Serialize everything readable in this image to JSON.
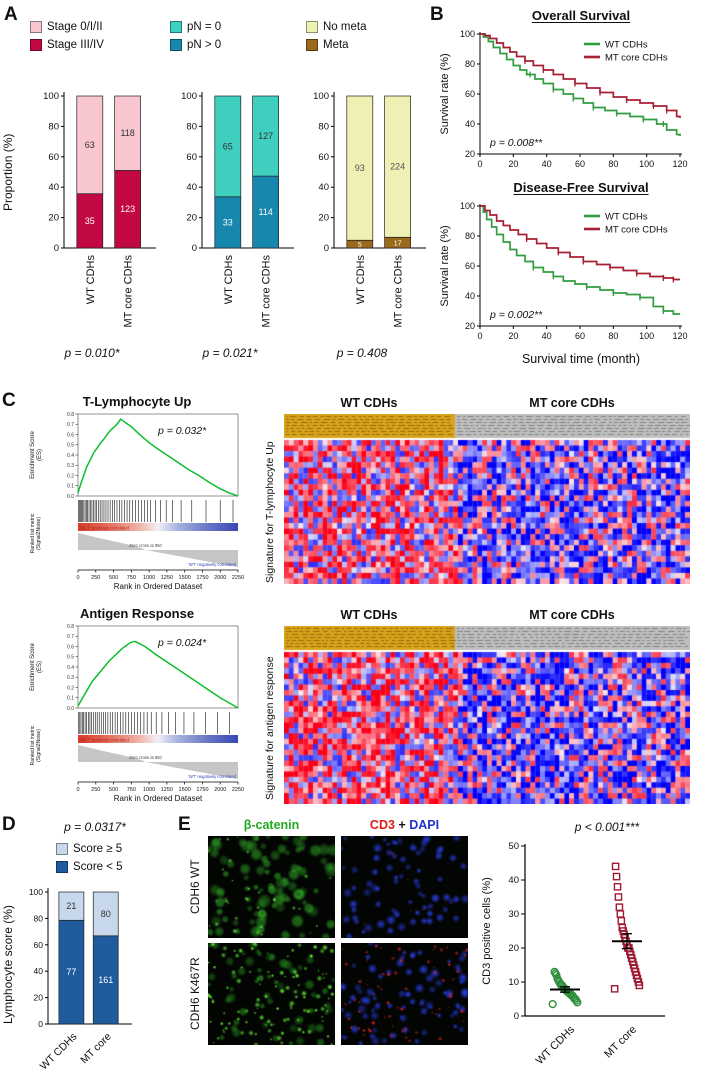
{
  "figure": {
    "panel_labels": {
      "A": "A",
      "B": "B",
      "C": "C",
      "D": "D",
      "E": "E"
    }
  },
  "chart_data": [
    {
      "id": "A1",
      "type": "bar",
      "stacked": true,
      "ylabel": "Proportion (%)",
      "ylim": [
        0,
        100
      ],
      "yticks": [
        0,
        20,
        40,
        60,
        80,
        100
      ],
      "categories": [
        "WT CDHs",
        "MT core CDHs"
      ],
      "series": [
        {
          "name": "Stage III/IV",
          "color": "#C20843",
          "label_color": "#FFFFFF",
          "values": [
            35,
            123
          ]
        },
        {
          "name": "Stage 0/I/II",
          "color": "#F7C6CF",
          "label_color": "#333333",
          "values": [
            63,
            118
          ]
        }
      ],
      "legend": [
        {
          "label": "Stage 0/I/II",
          "color": "#F7C6CF"
        },
        {
          "label": "Stage III/IV",
          "color": "#C20843"
        }
      ],
      "p_value": "p = 0.010*"
    },
    {
      "id": "A2",
      "type": "bar",
      "stacked": true,
      "ylabel": "Proportion (%)",
      "ylim": [
        0,
        100
      ],
      "yticks": [
        0,
        20,
        40,
        60,
        80,
        100
      ],
      "categories": [
        "WT CDHs",
        "MT core CDHs"
      ],
      "series": [
        {
          "name": "pN > 0",
          "color": "#1787AE",
          "label_color": "#FFFFFF",
          "values": [
            33,
            114
          ]
        },
        {
          "name": "pN = 0",
          "color": "#3FCFBF",
          "label_color": "#333333",
          "values": [
            65,
            127
          ]
        }
      ],
      "legend": [
        {
          "label": "pN = 0",
          "color": "#3FCFBF"
        },
        {
          "label": "pN > 0",
          "color": "#1787AE"
        }
      ],
      "p_value": "p = 0.021*"
    },
    {
      "id": "A3",
      "type": "bar",
      "stacked": true,
      "ylabel": "Proportion (%)",
      "ylim": [
        0,
        100
      ],
      "yticks": [
        0,
        20,
        40,
        60,
        80,
        100
      ],
      "categories": [
        "WT CDHs",
        "MT core CDHs"
      ],
      "series": [
        {
          "name": "Meta",
          "color": "#9A691B",
          "label_color": "#FFFFFF",
          "values": [
            5,
            17
          ]
        },
        {
          "name": "No meta",
          "color": "#EEF0B4",
          "label_color": "#555555",
          "values": [
            93,
            224
          ]
        }
      ],
      "legend": [
        {
          "label": "No meta",
          "color": "#EEF0B4"
        },
        {
          "label": "Meta",
          "color": "#9A691B"
        }
      ],
      "p_value": "p = 0.408"
    },
    {
      "id": "B1",
      "type": "line",
      "title": "Overall Survival",
      "ylabel": "Survival rate (%)",
      "xlabel": "",
      "xlim": [
        0,
        120
      ],
      "ylim": [
        20,
        100
      ],
      "xticks": [
        0,
        20,
        40,
        60,
        80,
        100,
        120
      ],
      "yticks": [
        20,
        40,
        60,
        80,
        100
      ],
      "p_value": "p = 0.008**",
      "series": [
        {
          "name": "WT CDHs",
          "color": "#2F9E3E",
          "x": [
            0,
            2,
            5,
            8,
            12,
            16,
            20,
            24,
            28,
            33,
            38,
            44,
            50,
            56,
            62,
            68,
            75,
            82,
            90,
            98,
            106,
            112,
            118,
            120
          ],
          "y": [
            100,
            98,
            95,
            91,
            87,
            83,
            79,
            76,
            73,
            70,
            67,
            63,
            60,
            57,
            54,
            51,
            49,
            47,
            45,
            43,
            40,
            36,
            33,
            32
          ],
          "censors": [
            30,
            44,
            56,
            68,
            82,
            98,
            110
          ]
        },
        {
          "name": "MT core CDHs",
          "color": "#A81F33",
          "x": [
            0,
            3,
            6,
            10,
            14,
            18,
            22,
            27,
            32,
            38,
            44,
            50,
            57,
            64,
            72,
            80,
            88,
            96,
            104,
            112,
            118,
            120
          ],
          "y": [
            100,
            99,
            97,
            94,
            91,
            88,
            85,
            82,
            79,
            76,
            73,
            70,
            67,
            64,
            61,
            58,
            56,
            54,
            52,
            49,
            45,
            44
          ],
          "censors": [
            27,
            38,
            57,
            72,
            88,
            104,
            112
          ]
        }
      ]
    },
    {
      "id": "B2",
      "type": "line",
      "title": "Disease-Free Survival",
      "ylabel": "Survival rate (%)",
      "xlabel": "Survival time (month)",
      "xlim": [
        0,
        120
      ],
      "ylim": [
        20,
        100
      ],
      "xticks": [
        0,
        20,
        40,
        60,
        80,
        100,
        120
      ],
      "yticks": [
        20,
        40,
        60,
        80,
        100
      ],
      "p_value": "p = 0.002**",
      "series": [
        {
          "name": "WT CDHs",
          "color": "#2F9E3E",
          "x": [
            0,
            2,
            4,
            7,
            10,
            14,
            18,
            22,
            27,
            32,
            38,
            44,
            50,
            57,
            64,
            72,
            80,
            88,
            96,
            104,
            110,
            116,
            120
          ],
          "y": [
            100,
            96,
            91,
            86,
            81,
            76,
            71,
            67,
            63,
            59,
            56,
            53,
            50,
            48,
            46,
            44,
            42,
            41,
            39,
            33,
            30,
            28,
            28
          ],
          "censors": [
            32,
            44,
            64,
            80,
            96,
            110
          ]
        },
        {
          "name": "MT core CDHs",
          "color": "#A81F33",
          "x": [
            0,
            3,
            6,
            10,
            14,
            18,
            23,
            28,
            34,
            40,
            47,
            54,
            62,
            70,
            78,
            86,
            94,
            102,
            110,
            116,
            120
          ],
          "y": [
            100,
            97,
            94,
            90,
            87,
            84,
            81,
            78,
            75,
            72,
            69,
            66,
            63,
            61,
            59,
            57,
            55,
            53,
            52,
            51,
            51
          ],
          "censors": [
            28,
            47,
            62,
            78,
            94,
            110,
            116
          ]
        }
      ]
    },
    {
      "id": "C1",
      "type": "gsea",
      "title": "T-Lymphocyte Up",
      "p_value": "p = 0.032*",
      "ylabel_line1": "Enrichment Score",
      "ylabel_line2": "(ES)",
      "ylabel2_line1": "Ranked list metric",
      "ylabel2_line2": "(Signal2Noise)",
      "xlabel": "Rank in Ordered Dataset",
      "xmax": 2250,
      "xticks": [
        0,
        250,
        500,
        750,
        1000,
        1250,
        1500,
        1750,
        2000,
        2250
      ],
      "es_x": [
        0,
        40,
        80,
        120,
        170,
        220,
        270,
        320,
        370,
        420,
        470,
        520,
        560,
        600,
        640,
        700,
        760,
        820,
        900,
        1000,
        1100,
        1250,
        1400,
        1550,
        1700,
        1850,
        2000,
        2125,
        2250
      ],
      "es_y": [
        0.03,
        0.12,
        0.2,
        0.28,
        0.35,
        0.42,
        0.47,
        0.52,
        0.56,
        0.61,
        0.65,
        0.68,
        0.71,
        0.75,
        0.73,
        0.7,
        0.67,
        0.63,
        0.58,
        0.52,
        0.47,
        0.4,
        0.33,
        0.26,
        0.2,
        0.13,
        0.07,
        0.03,
        0
      ],
      "hits": [
        8,
        20,
        35,
        50,
        65,
        82,
        100,
        118,
        136,
        155,
        175,
        196,
        218,
        240,
        263,
        287,
        312,
        338,
        365,
        393,
        422,
        452,
        483,
        515,
        548,
        582,
        617,
        653,
        690,
        728,
        767,
        807,
        848,
        890,
        933,
        977,
        1022,
        1090,
        1160,
        1240,
        1330,
        1450,
        1600,
        1800,
        2000,
        2180
      ],
      "metric_x": [
        0,
        150,
        300,
        450,
        600,
        750,
        900,
        950,
        1100,
        1250,
        1400,
        1550,
        1700,
        1850,
        2000,
        2125,
        2250
      ],
      "metric_y": [
        3,
        2.55,
        2.1,
        1.68,
        1.27,
        0.85,
        0.3,
        0,
        -0.35,
        -0.7,
        -1.05,
        -1.4,
        -1.75,
        -2.1,
        -2.45,
        -2.7,
        -3
      ],
      "zero_cross": 950,
      "annotations": [
        "'MUT' positively correlated",
        "Zero cross at 950",
        "'WT' negatively correlated"
      ]
    },
    {
      "id": "H1",
      "type": "heatmap",
      "group_labels": [
        "WT CDHs",
        "MT core CDHs"
      ],
      "row_label": "Signature for T-lymphocyte Up",
      "rows": 26,
      "cols": 84,
      "split": 0.42,
      "seed": 7,
      "bias_left": 0.3,
      "bias_right": -0.28,
      "header_colors": [
        "#D9A41B",
        "#BFBFBF"
      ]
    },
    {
      "id": "C2",
      "type": "gsea",
      "title": "Antigen Response",
      "p_value": "p = 0.024*",
      "ylabel_line1": "Enrichment Score",
      "ylabel_line2": "(ES)",
      "ylabel2_line1": "Ranked list metric",
      "ylabel2_line2": "(Signal2Noise)",
      "xlabel": "Rank in Ordered Dataset",
      "xmax": 2250,
      "xticks": [
        0,
        250,
        500,
        750,
        1000,
        1250,
        1500,
        1750,
        2000,
        2250
      ],
      "es_x": [
        0,
        50,
        100,
        150,
        200,
        260,
        320,
        380,
        440,
        500,
        560,
        620,
        680,
        740,
        800,
        860,
        940,
        1020,
        1120,
        1250,
        1400,
        1550,
        1700,
        1850,
        2000,
        2125,
        2250
      ],
      "es_y": [
        0.02,
        0.08,
        0.14,
        0.2,
        0.26,
        0.31,
        0.36,
        0.41,
        0.46,
        0.5,
        0.54,
        0.58,
        0.61,
        0.64,
        0.65,
        0.63,
        0.6,
        0.56,
        0.51,
        0.45,
        0.38,
        0.31,
        0.24,
        0.17,
        0.1,
        0.05,
        0
      ],
      "hits": [
        10,
        25,
        42,
        60,
        80,
        100,
        122,
        145,
        168,
        192,
        217,
        243,
        270,
        298,
        327,
        357,
        388,
        420,
        453,
        487,
        522,
        558,
        595,
        633,
        672,
        712,
        753,
        795,
        838,
        882,
        927,
        973,
        1030,
        1100,
        1180,
        1270,
        1370,
        1490,
        1630,
        1790,
        1960,
        2130
      ],
      "metric_x": [
        0,
        150,
        300,
        450,
        600,
        750,
        900,
        950,
        1100,
        1250,
        1400,
        1550,
        1700,
        1850,
        2000,
        2125,
        2250
      ],
      "metric_y": [
        3,
        2.55,
        2.1,
        1.68,
        1.27,
        0.85,
        0.3,
        0,
        -0.35,
        -0.7,
        -1.05,
        -1.4,
        -1.75,
        -2.1,
        -2.45,
        -2.7,
        -3
      ],
      "zero_cross": 950,
      "annotations": [
        "'MUT' positively correlated",
        "Zero cross at 950",
        "'WT' negatively correlated"
      ]
    },
    {
      "id": "H2",
      "type": "heatmap",
      "group_labels": [
        "WT CDHs",
        "MT core CDHs"
      ],
      "row_label": "Signature for antigen response",
      "rows": 28,
      "cols": 84,
      "split": 0.42,
      "seed": 13,
      "bias_left": 0.3,
      "bias_right": -0.28,
      "header_colors": [
        "#D9A41B",
        "#BFBFBF"
      ]
    },
    {
      "id": "D",
      "type": "bar",
      "stacked": true,
      "ylabel": "Lymphocyte score (%)",
      "ylim": [
        0,
        100
      ],
      "yticks": [
        0,
        20,
        40,
        60,
        80,
        100
      ],
      "categories": [
        "WT CDHs",
        "MT core"
      ],
      "series": [
        {
          "name": "Score < 5",
          "color": "#1E5C9E",
          "label_color": "#FFFFFF",
          "values": [
            77,
            161
          ]
        },
        {
          "name": "Score ≥ 5",
          "color": "#C7D7EC",
          "label_color": "#333333",
          "values": [
            21,
            80
          ]
        }
      ],
      "legend": [
        {
          "label": "Score ≥ 5",
          "color": "#C7D7EC"
        },
        {
          "label": "Score < 5",
          "color": "#1E5C9E"
        }
      ],
      "p_value": "p = 0.0317*"
    },
    {
      "id": "E",
      "type": "scatter",
      "ylabel": "CD3 positive cells (%)",
      "ylim": [
        0,
        50
      ],
      "yticks": [
        0,
        10,
        20,
        30,
        40,
        50
      ],
      "p_value": "p < 0.001***",
      "groups": [
        {
          "name": "WT CDHs",
          "marker": "circle",
          "color": "#2F8F3C",
          "values": [
            3.5,
            4,
            4.5,
            5,
            5,
            5.5,
            6,
            6,
            6.5,
            6.5,
            7,
            7,
            7.5,
            7.5,
            8,
            8,
            8.5,
            9,
            9,
            9.5,
            10,
            10.5,
            11,
            12,
            12.5,
            13
          ]
        },
        {
          "name": "MT core",
          "marker": "square",
          "color": "#9E1B32",
          "values": [
            8,
            9,
            10,
            11,
            12,
            13,
            14,
            15,
            16,
            17,
            18,
            19,
            20,
            20,
            21,
            22,
            23,
            24,
            25,
            26,
            28,
            30,
            32,
            35,
            38,
            41,
            44
          ]
        }
      ],
      "means": [
        7.8,
        22
      ],
      "sems": [
        0.8,
        2.2
      ]
    }
  ],
  "panelE": {
    "col_titles": {
      "col1": "β-catenin",
      "col2_parts": [
        {
          "text": "CD3",
          "color": "#E01818"
        },
        {
          "text": " + ",
          "color": "#111111"
        },
        {
          "text": "DAPI",
          "color": "#2233CC"
        }
      ]
    },
    "row_titles": [
      "CDH6 WT",
      "CDH6 K467R"
    ],
    "images": [
      {
        "id": "bcat_wt",
        "seed": 11,
        "layers": [
          {
            "n": 95,
            "rmin": 3,
            "rmax": 7.5,
            "color": [
              60,
              205,
              45
            ],
            "amin": 0.35,
            "amax": 0.8,
            "ring": true
          },
          {
            "n": 30,
            "rmin": 1,
            "rmax": 2.6,
            "color": [
              120,
              255,
              80
            ],
            "amin": 0.5,
            "amax": 0.9
          }
        ]
      },
      {
        "id": "cd3_wt",
        "seed": 21,
        "layers": [
          {
            "n": 78,
            "rmin": 2.5,
            "rmax": 5.5,
            "color": [
              40,
              60,
              220
            ],
            "amin": 0.45,
            "amax": 0.9
          },
          {
            "n": 5,
            "rmin": 0.8,
            "rmax": 1.6,
            "color": [
              230,
              40,
              40
            ],
            "amin": 0.6,
            "amax": 0.9
          }
        ]
      },
      {
        "id": "bcat_mt",
        "seed": 31,
        "layers": [
          {
            "n": 55,
            "rmin": 2.5,
            "rmax": 6,
            "color": [
              50,
              190,
              40
            ],
            "amin": 0.3,
            "amax": 0.7,
            "ring": true
          },
          {
            "n": 110,
            "rmin": 1,
            "rmax": 3.2,
            "color": [
              110,
              255,
              60
            ],
            "amin": 0.55,
            "amax": 1
          }
        ]
      },
      {
        "id": "cd3_mt",
        "seed": 41,
        "layers": [
          {
            "n": 85,
            "rmin": 2.5,
            "rmax": 5.5,
            "color": [
              40,
              60,
              225
            ],
            "amin": 0.45,
            "amax": 0.9
          },
          {
            "n": 70,
            "rmin": 0.8,
            "rmax": 2.4,
            "color": [
              235,
              35,
              35
            ],
            "amin": 0.55,
            "amax": 0.95
          }
        ]
      }
    ]
  }
}
